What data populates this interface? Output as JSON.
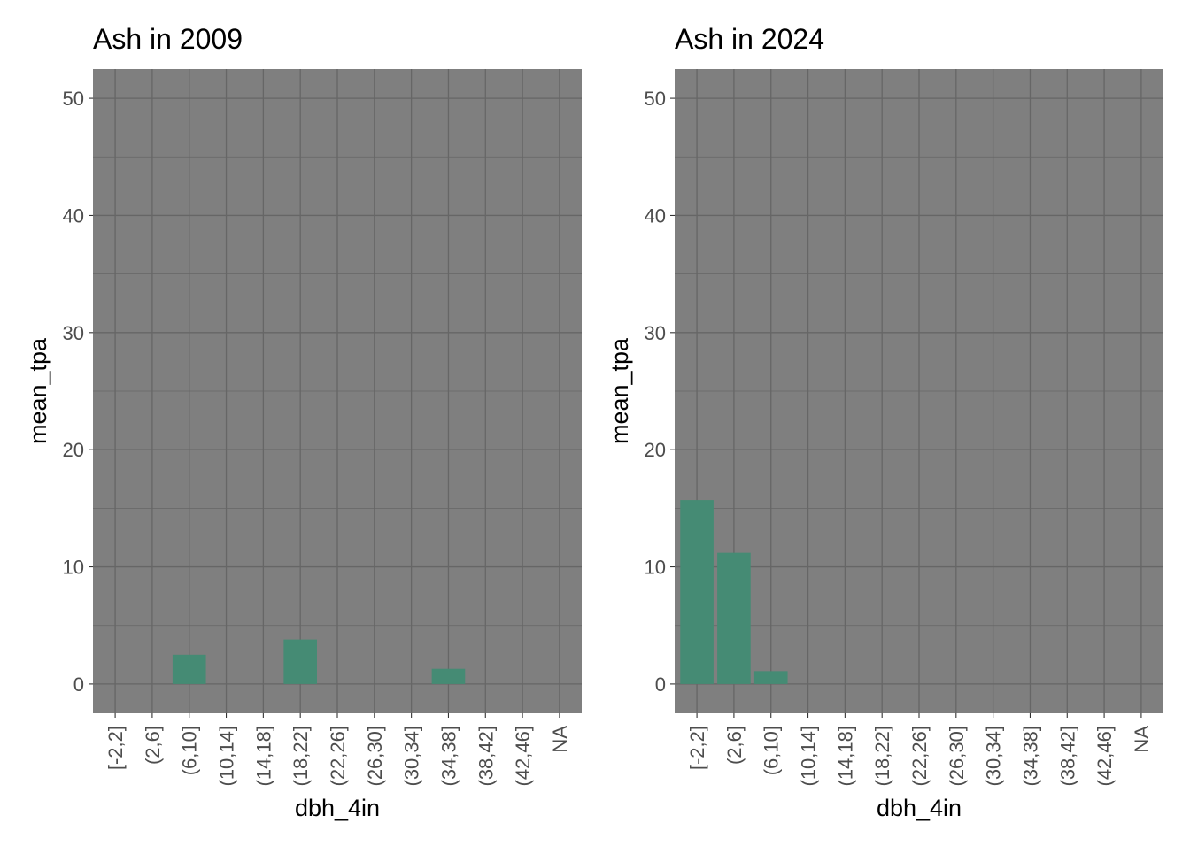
{
  "chart_data": [
    {
      "type": "bar",
      "title": "Ash in 2009",
      "xlabel": "dbh_4in",
      "ylabel": "mean_tpa",
      "categories": [
        "[-2,2]",
        "(2,6]",
        "(6,10]",
        "(10,14]",
        "(14,18]",
        "(18,22]",
        "(22,26]",
        "(26,30]",
        "(30,34]",
        "(34,38]",
        "(38,42]",
        "(42,46]",
        "NA"
      ],
      "values": [
        0,
        0,
        2.5,
        0,
        0,
        3.8,
        0,
        0,
        0,
        1.3,
        0,
        0,
        0
      ],
      "ylim": [
        -2.5,
        52.5
      ],
      "yticks": [
        0,
        10,
        20,
        30,
        40,
        50
      ],
      "grid": true,
      "colors": {
        "bar": "#458b74",
        "panel": "#7f7f7f",
        "grid": "#666666"
      }
    },
    {
      "type": "bar",
      "title": "Ash in 2024",
      "xlabel": "dbh_4in",
      "ylabel": "mean_tpa",
      "categories": [
        "[-2,2]",
        "(2,6]",
        "(6,10]",
        "(10,14]",
        "(14,18]",
        "(18,22]",
        "(22,26]",
        "(26,30]",
        "(30,34]",
        "(34,38]",
        "(38,42]",
        "(42,46]",
        "NA"
      ],
      "values": [
        15.7,
        11.2,
        1.1,
        0,
        0,
        0,
        0,
        0,
        0,
        0,
        0,
        0,
        0
      ],
      "ylim": [
        -2.5,
        52.5
      ],
      "yticks": [
        0,
        10,
        20,
        30,
        40,
        50
      ],
      "grid": true,
      "colors": {
        "bar": "#458b74",
        "panel": "#7f7f7f",
        "grid": "#666666"
      }
    }
  ]
}
